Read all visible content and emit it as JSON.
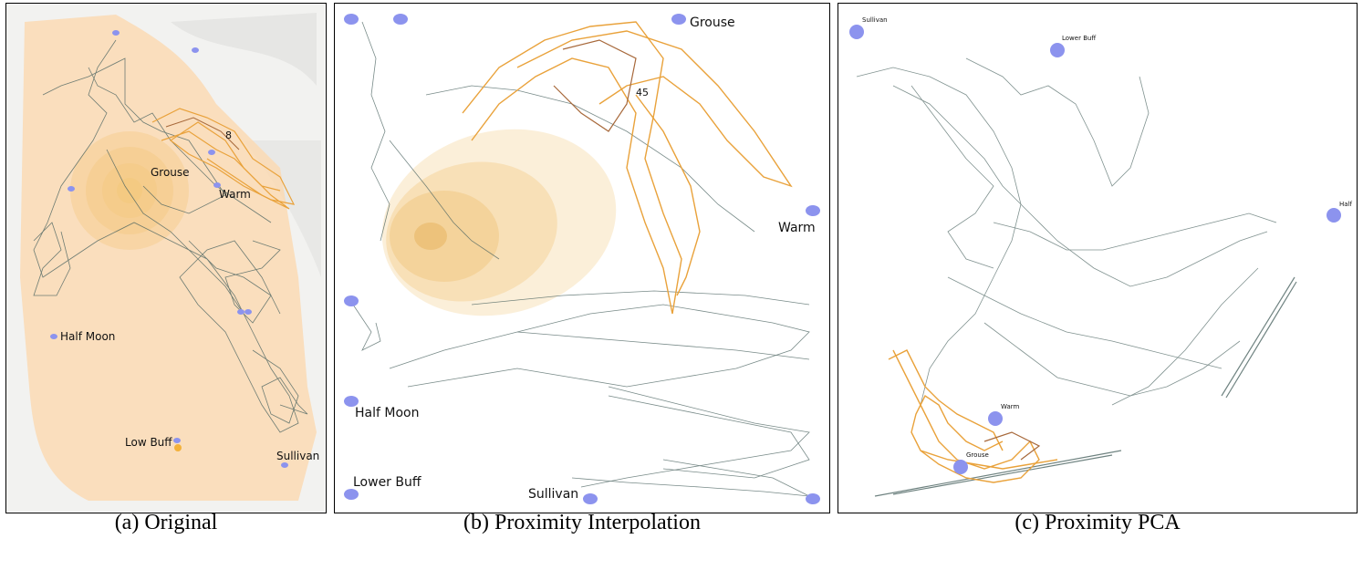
{
  "panels": [
    {
      "caption": "(a) Original",
      "labels": [
        "Grouse",
        "Warm",
        "Half Moon",
        "Low Buff",
        "Sullivan"
      ],
      "marker": "8"
    },
    {
      "caption": "(b) Proximity Interpolation",
      "labels": [
        "Grouse",
        "Warm",
        "Half Moon",
        "Lower Buff",
        "Sullivan"
      ],
      "marker": "45"
    },
    {
      "caption": "(c) Proximity PCA",
      "labels": [
        "Sullivan",
        "Lower Buff",
        "Half",
        "Warm",
        "Grouse"
      ]
    }
  ],
  "colors": {
    "gray_track": "#4b6461",
    "orange_track": "#e9a23b",
    "brown_track": "#a7683a",
    "water_point": "#8c93ee",
    "range_fill": "#fbd8b0",
    "hotspot": "#f3c778"
  }
}
